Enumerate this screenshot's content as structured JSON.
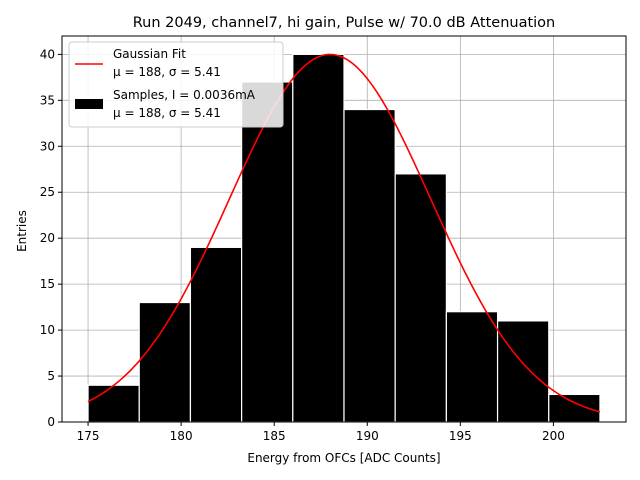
{
  "chart_data": {
    "type": "bar",
    "title": "Run 2049, channel7, hi gain, Pulse w/ 70.0 dB Attenuation",
    "xlabel": "Energy from OFCs [ADC Counts]",
    "ylabel": "Entries",
    "xlim": [
      173.6,
      203.9
    ],
    "ylim": [
      0,
      42
    ],
    "grid": true,
    "legend_position": "top-left",
    "xticks": [
      175,
      180,
      185,
      190,
      195,
      200
    ],
    "xtick_labels": [
      "175",
      "180",
      "185",
      "190",
      "195",
      "200"
    ],
    "yticks": [
      0,
      5,
      10,
      15,
      20,
      25,
      30,
      35,
      40
    ],
    "ytick_labels": [
      "0",
      "5",
      "10",
      "15",
      "20",
      "25",
      "30",
      "35",
      "40"
    ],
    "histogram": {
      "name": "Samples, I = 0.0036mA",
      "stats": "μ = 188, σ = 5.41",
      "bin_edges": [
        175.0,
        177.75,
        180.5,
        183.25,
        186.0,
        188.75,
        191.5,
        194.25,
        197.0,
        199.75,
        202.5
      ],
      "counts": [
        4,
        13,
        19,
        37,
        40,
        34,
        27,
        12,
        11,
        3
      ],
      "color": "#000000",
      "edgecolor": "#ffffff"
    },
    "fit": {
      "name": "Gaussian Fit",
      "stats": "μ = 188, σ = 5.41",
      "mu": 188,
      "sigma": 5.41,
      "peak": 40,
      "x_range": [
        175,
        202.5
      ],
      "color": "#ff0000"
    },
    "legend": [
      {
        "label": "Gaussian Fit",
        "sublabel": "μ = 188, σ = 5.41",
        "marker": "line",
        "color": "#ff0000"
      },
      {
        "label": "Samples, I = 0.0036mA",
        "sublabel": "μ = 188, σ = 5.41",
        "marker": "patch",
        "color": "#000000"
      }
    ]
  }
}
